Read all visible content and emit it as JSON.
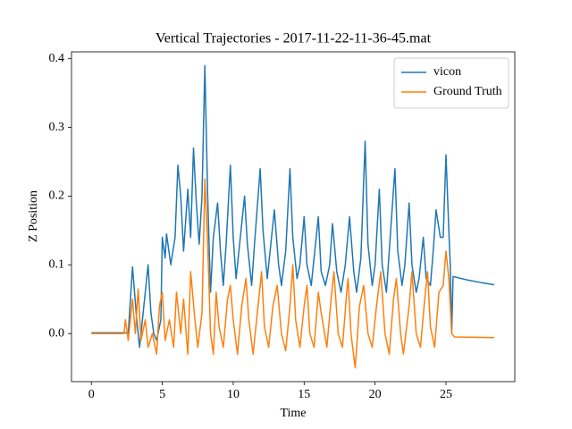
{
  "chart_data": {
    "type": "line",
    "title": "Vertical Trajectories - 2017-11-22-11-36-45.mat",
    "x_label": "Time",
    "y_label": "Z Position",
    "xlim": [
      -1.4,
      29.85
    ],
    "ylim": [
      -0.07,
      0.41
    ],
    "xticks": [
      0,
      5,
      10,
      15,
      20,
      25
    ],
    "yticks": [
      {
        "value": 0,
        "label": "0.0"
      },
      0.1,
      0.2,
      0.3,
      0.4
    ],
    "grid": false,
    "legend": "upper right",
    "series": [
      {
        "name": "vicon",
        "color": "#1f77b4",
        "x": [
          0,
          2.4,
          2.6,
          2.9,
          3.2,
          3.4,
          3.7,
          4.0,
          4.2,
          4.4,
          4.6,
          4.9,
          5.0,
          5.2,
          5.3,
          5.6,
          5.9,
          6.1,
          6.3,
          6.5,
          6.6,
          6.8,
          7.0,
          7.2,
          7.4,
          7.6,
          7.8,
          8.0,
          8.2,
          8.4,
          8.6,
          8.9,
          9.1,
          9.3,
          9.5,
          9.8,
          10.0,
          10.2,
          10.5,
          10.8,
          11.0,
          11.3,
          11.5,
          11.9,
          12.1,
          12.4,
          12.6,
          12.9,
          13.2,
          13.4,
          13.7,
          14.0,
          14.2,
          14.5,
          14.7,
          15.0,
          15.2,
          15.5,
          15.7,
          16.0,
          16.2,
          16.5,
          16.8,
          17.0,
          17.3,
          17.6,
          17.9,
          18.2,
          18.5,
          18.7,
          19.0,
          19.3,
          19.5,
          19.8,
          20.0,
          20.3,
          20.5,
          20.8,
          21.0,
          21.4,
          21.6,
          21.9,
          22.1,
          22.4,
          22.6,
          22.9,
          23.1,
          23.4,
          23.6,
          23.9,
          24.1,
          24.3,
          24.6,
          24.8,
          25.0,
          25.2,
          25.3,
          25.4,
          25.5,
          26.5,
          27.5,
          28.4
        ],
        "values": [
          0.001,
          0.001,
          0.0,
          0.097,
          0.02,
          -0.02,
          0.04,
          0.1,
          0.03,
          0.0,
          -0.01,
          0.02,
          0.14,
          0.11,
          0.145,
          0.1,
          0.14,
          0.245,
          0.2,
          0.12,
          0.15,
          0.21,
          0.14,
          0.27,
          0.19,
          0.13,
          0.2,
          0.39,
          0.2,
          0.06,
          0.14,
          0.19,
          0.12,
          0.07,
          0.13,
          0.245,
          0.14,
          0.08,
          0.14,
          0.2,
          0.13,
          0.07,
          0.13,
          0.24,
          0.15,
          0.08,
          0.12,
          0.18,
          0.1,
          0.07,
          0.12,
          0.24,
          0.14,
          0.08,
          0.1,
          0.17,
          0.1,
          0.07,
          0.11,
          0.17,
          0.09,
          0.07,
          0.1,
          0.16,
          0.09,
          0.06,
          0.1,
          0.17,
          0.09,
          0.06,
          0.11,
          0.28,
          0.13,
          0.07,
          0.1,
          0.21,
          0.1,
          0.06,
          0.12,
          0.24,
          0.12,
          0.07,
          0.1,
          0.19,
          0.1,
          0.06,
          0.08,
          0.14,
          0.08,
          0.07,
          0.12,
          0.18,
          0.14,
          0.14,
          0.26,
          0.15,
          0.1,
          0.0,
          0.083,
          0.078,
          0.074,
          0.071
        ]
      },
      {
        "name": "Ground Truth",
        "color": "#ff7f0e",
        "x": [
          0,
          2.3,
          2.4,
          2.6,
          2.9,
          3.1,
          3.3,
          3.5,
          3.8,
          4.0,
          4.3,
          4.6,
          4.8,
          5.0,
          5.2,
          5.5,
          5.8,
          6.0,
          6.3,
          6.5,
          6.8,
          7.0,
          7.3,
          7.5,
          7.8,
          8.0,
          8.2,
          8.4,
          8.6,
          8.8,
          9.0,
          9.3,
          9.6,
          9.8,
          10.0,
          10.3,
          10.6,
          10.9,
          11.1,
          11.4,
          11.7,
          12.0,
          12.2,
          12.5,
          12.8,
          13.1,
          13.4,
          13.7,
          14.0,
          14.2,
          14.4,
          14.7,
          15.0,
          15.2,
          15.4,
          15.7,
          16.0,
          16.2,
          16.6,
          16.9,
          17.1,
          17.4,
          17.7,
          18.0,
          18.1,
          18.3,
          18.6,
          18.9,
          19.2,
          19.5,
          19.8,
          20.1,
          20.4,
          20.7,
          21.0,
          21.3,
          21.5,
          21.8,
          22.0,
          22.4,
          22.6,
          22.9,
          23.2,
          23.5,
          23.7,
          23.9,
          24.2,
          24.5,
          24.8,
          25.0,
          25.2,
          25.4,
          25.6,
          28.4
        ],
        "values": [
          0.0,
          0.0,
          0.02,
          -0.01,
          0.05,
          0.0,
          0.065,
          -0.01,
          0.02,
          -0.02,
          0.0,
          -0.03,
          0.04,
          0.06,
          -0.01,
          0.02,
          -0.02,
          0.06,
          0.0,
          0.05,
          -0.03,
          0.09,
          0.02,
          -0.02,
          0.03,
          0.225,
          0.13,
          0.0,
          -0.03,
          0.06,
          0.01,
          -0.02,
          0.05,
          0.07,
          0.02,
          -0.03,
          0.04,
          0.08,
          0.02,
          -0.03,
          0.03,
          0.09,
          0.01,
          -0.02,
          0.04,
          0.07,
          0.0,
          -0.025,
          0.04,
          0.1,
          0.02,
          -0.02,
          0.04,
          0.07,
          0.0,
          -0.02,
          0.06,
          0.03,
          -0.02,
          0.05,
          0.09,
          0.0,
          -0.02,
          0.06,
          0.08,
          0.0,
          -0.05,
          0.04,
          0.07,
          0.0,
          -0.02,
          0.04,
          0.09,
          0.0,
          -0.03,
          0.05,
          0.08,
          0.0,
          -0.03,
          0.04,
          0.09,
          0.0,
          -0.02,
          0.05,
          0.09,
          0.01,
          -0.02,
          0.06,
          0.07,
          0.12,
          0.08,
          0.0,
          -0.005,
          -0.006
        ]
      }
    ]
  }
}
